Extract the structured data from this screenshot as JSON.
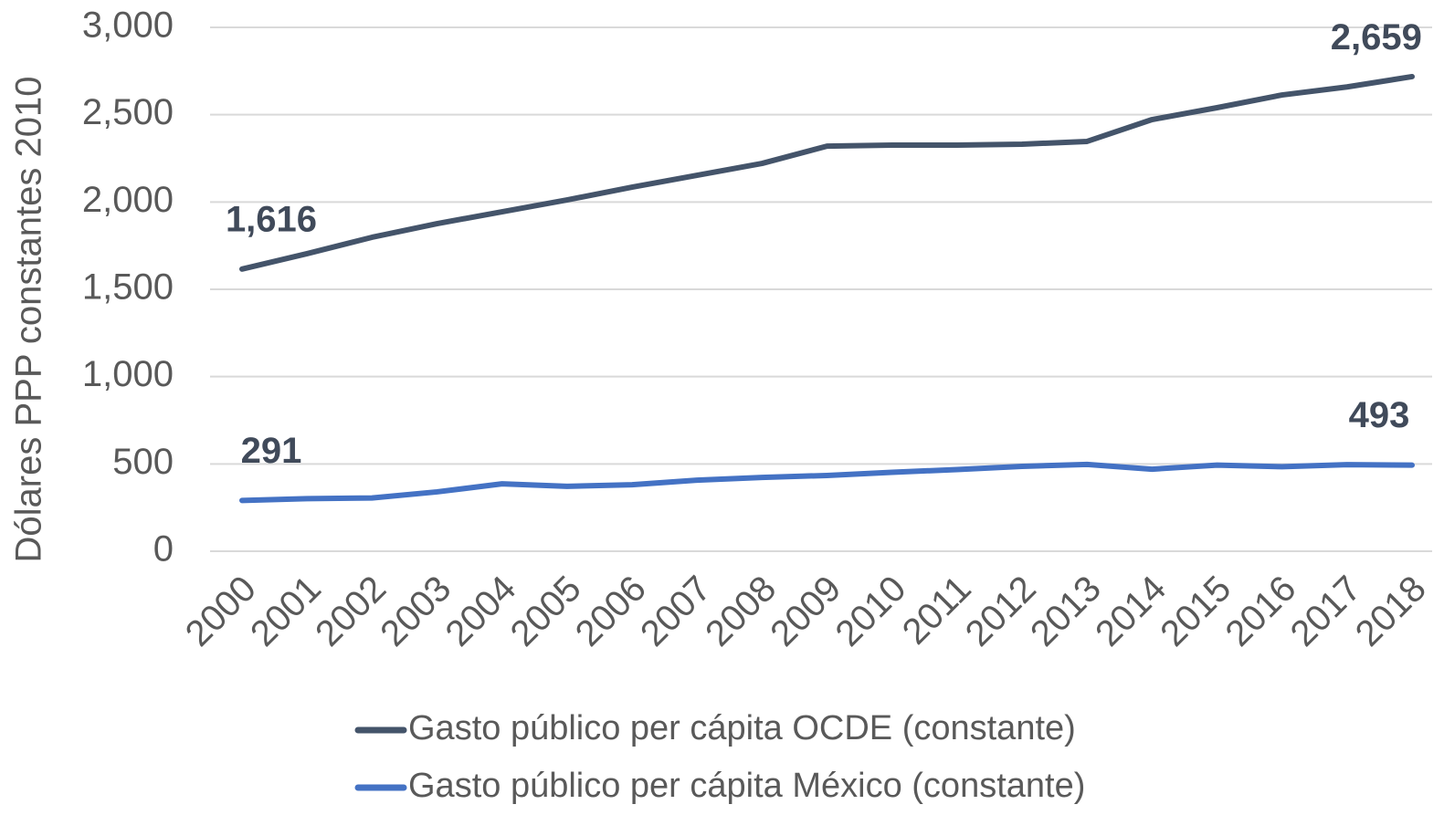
{
  "chart_data": {
    "type": "line",
    "y_label": "Dólares PPP constantes 2010",
    "categories": [
      "2000",
      "2001",
      "2002",
      "2003",
      "2004",
      "2005",
      "2006",
      "2007",
      "2008",
      "2009",
      "2010",
      "2011",
      "2012",
      "2013",
      "2014",
      "2015",
      "2016",
      "2017",
      "2018"
    ],
    "series": [
      {
        "name": "Gasto público per cápita OCDE (constante)",
        "color": "#44546a",
        "values": [
          1616,
          1704,
          1798,
          1876,
          1944,
          2012,
          2085,
          2153,
          2221,
          2320,
          2326,
          2326,
          2331,
          2347,
          2472,
          2540,
          2613,
          2659,
          2718
        ],
        "value_labels": [
          "1,616",
          null,
          null,
          null,
          null,
          null,
          null,
          null,
          null,
          null,
          null,
          null,
          null,
          null,
          null,
          null,
          null,
          "2,659",
          null
        ]
      },
      {
        "name": "Gasto público per cápita México (constante)",
        "color": "#4472c4",
        "values": [
          291,
          301,
          305,
          340,
          386,
          372,
          381,
          407,
          423,
          434,
          452,
          468,
          486,
          497,
          470,
          493,
          484,
          496,
          493
        ],
        "value_labels": [
          "291",
          null,
          null,
          null,
          null,
          null,
          null,
          null,
          null,
          null,
          null,
          null,
          null,
          null,
          null,
          null,
          null,
          null,
          "493"
        ]
      }
    ],
    "ylim": [
      0,
      3000
    ],
    "yticks": [
      0,
      {
        "value": 500,
        "label": "500"
      },
      {
        "value": 1000,
        "label": "1,000"
      },
      {
        "value": 1500,
        "label": "1,500"
      },
      {
        "value": 2000,
        "label": "2,000"
      },
      {
        "value": 2500,
        "label": "2,500"
      },
      {
        "value": 3000,
        "label": "3,000"
      }
    ],
    "grid": true
  }
}
